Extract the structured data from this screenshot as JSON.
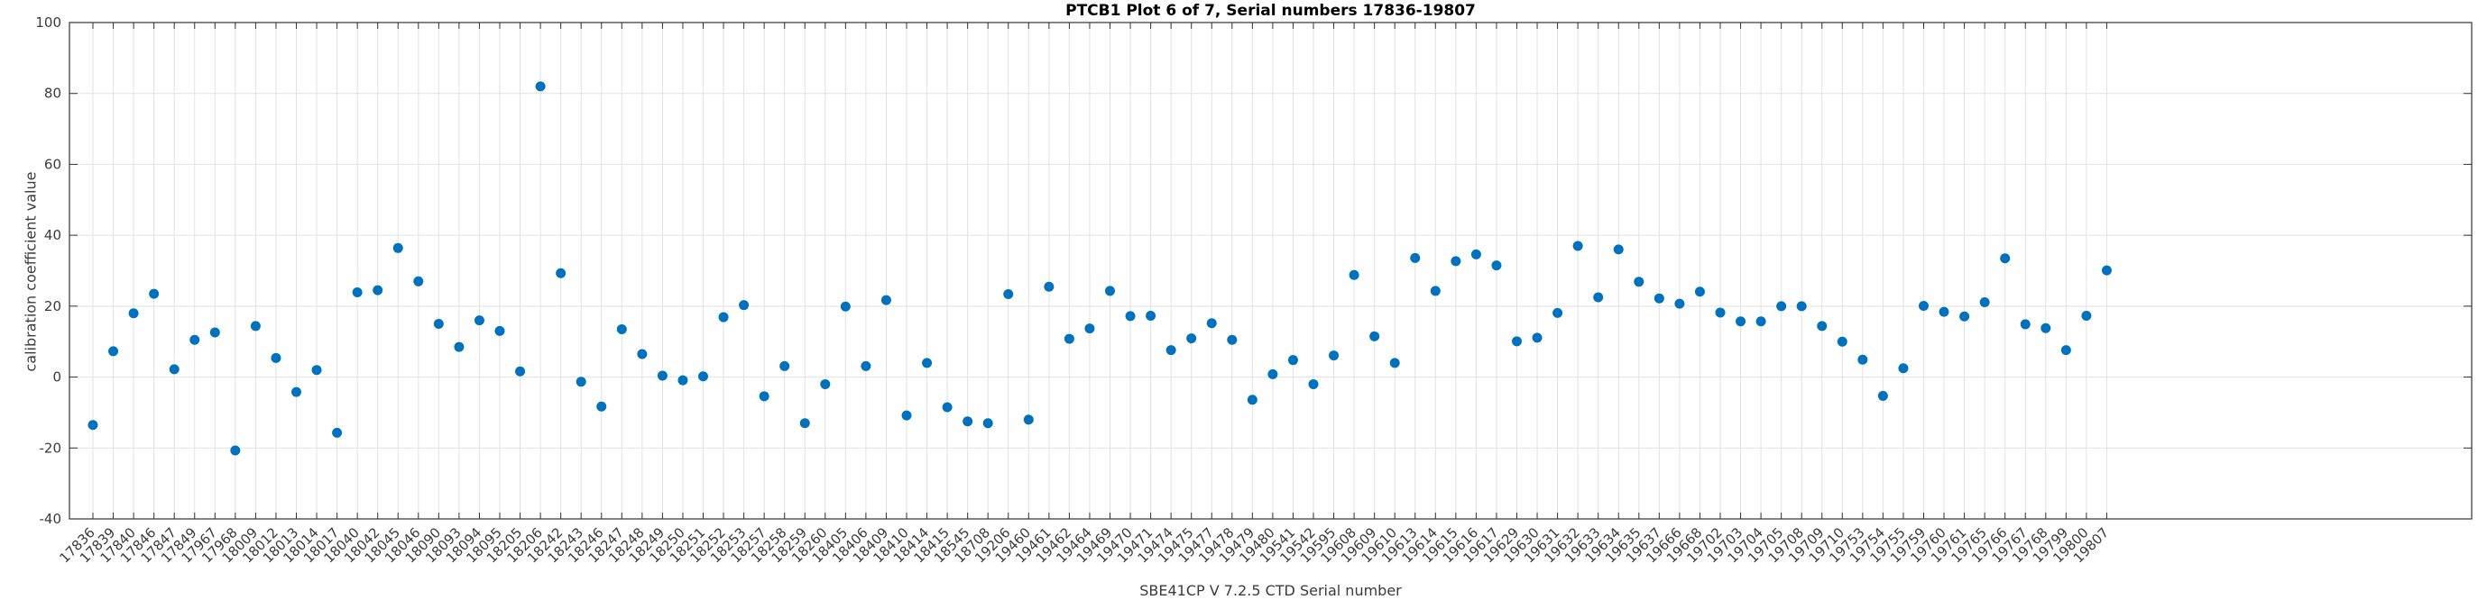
{
  "page": {
    "background": "#ffffff"
  },
  "chart_data": {
    "type": "scatter",
    "title": "PTCB1 Plot 6 of 7, Serial numbers 17836-19807",
    "xlabel": "SBE41CP V 7.2.5 CTD Serial number",
    "ylabel": "calibration coefficient value",
    "ylim": [
      -40,
      100
    ],
    "yticks": [
      100,
      80,
      60,
      40,
      20,
      0,
      -20,
      -40
    ],
    "grid": true,
    "legend_position": "none",
    "marker_color": "#0072BD",
    "axis_color": "#333333",
    "grid_color": "#e2e2e2",
    "tick_label_color": "#3b3b3b",
    "x_tick_rotation_deg": 45,
    "categories": [
      "17836",
      "17839",
      "17840",
      "17846",
      "17847",
      "17849",
      "17967",
      "17968",
      "18009",
      "18012",
      "18013",
      "18014",
      "18017",
      "18040",
      "18042",
      "18045",
      "18046",
      "18090",
      "18093",
      "18094",
      "18095",
      "18205",
      "18206",
      "18242",
      "18243",
      "18246",
      "18247",
      "18248",
      "18249",
      "18250",
      "18251",
      "18252",
      "18253",
      "18257",
      "18258",
      "18259",
      "18260",
      "18405",
      "18406",
      "18409",
      "18410",
      "18414",
      "18415",
      "18545",
      "18708",
      "19206",
      "19460",
      "19461",
      "19462",
      "19464",
      "19469",
      "19470",
      "19471",
      "19474",
      "19475",
      "19477",
      "19478",
      "19479",
      "19480",
      "19541",
      "19542",
      "19595",
      "19608",
      "19609",
      "19610",
      "19613",
      "19614",
      "19615",
      "19616",
      "19617",
      "19629",
      "19630",
      "19631",
      "19632",
      "19633",
      "19634",
      "19635",
      "19637",
      "19666",
      "19668",
      "19702",
      "19703",
      "19704",
      "19705",
      "19708",
      "19709",
      "19710",
      "19753",
      "19754",
      "19755",
      "19759",
      "19760",
      "19761",
      "19765",
      "19766",
      "19767",
      "19768",
      "19799",
      "19800",
      "19807"
    ],
    "values": [
      -13.5,
      7.3,
      18.0,
      23.5,
      2.2,
      10.5,
      12.6,
      -20.7,
      14.4,
      5.4,
      -4.2,
      2.0,
      -15.7,
      23.9,
      24.5,
      36.4,
      27.0,
      15.0,
      8.5,
      16.0,
      13.0,
      1.6,
      82.0,
      29.3,
      -1.3,
      -8.3,
      13.5,
      6.5,
      0.4,
      -0.9,
      0.2,
      16.9,
      20.3,
      -5.4,
      3.1,
      -13.0,
      -2.0,
      19.9,
      3.1,
      21.7,
      -10.8,
      4.0,
      -8.5,
      -12.5,
      -13.0,
      23.4,
      -12.0,
      25.5,
      10.8,
      13.7,
      24.3,
      17.2,
      17.3,
      7.6,
      10.9,
      15.2,
      10.5,
      -6.4,
      0.8,
      4.8,
      -2.0,
      6.1,
      28.8,
      11.5,
      4.0,
      33.6,
      24.3,
      32.7,
      34.6,
      31.5,
      10.1,
      11.1,
      18.1,
      37.0,
      22.5,
      36.0,
      26.9,
      22.2,
      20.7,
      24.1,
      18.2,
      15.7,
      15.7,
      20.0,
      20.0,
      14.4,
      10.0,
      4.9,
      -5.3,
      2.5,
      20.1,
      18.4,
      17.1,
      21.1,
      33.5,
      14.9,
      13.8,
      7.6,
      17.3,
      30.1
    ]
  }
}
